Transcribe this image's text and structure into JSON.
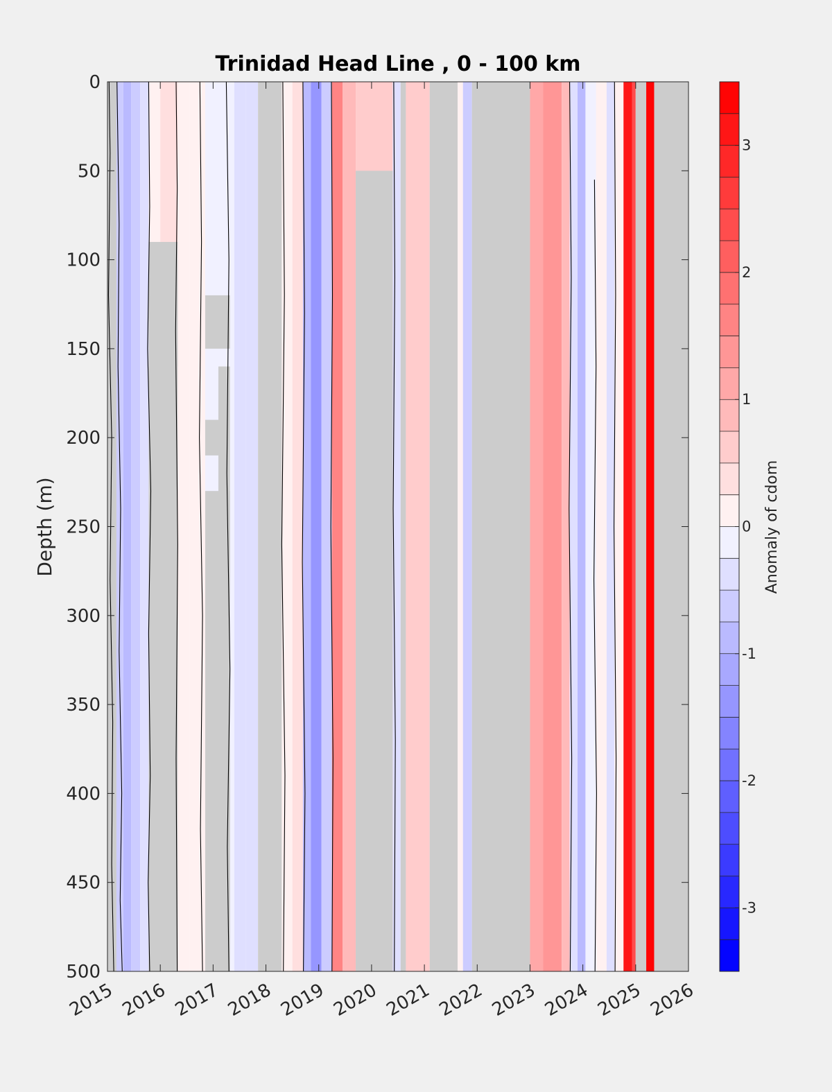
{
  "chart_data": {
    "type": "heatmap",
    "title": "Trinidad Head Line , 0 - 100 km",
    "xlabel": "",
    "ylabel": "Depth (m)",
    "colorbar_label": "Anomaly of cdom",
    "xlim": [
      2015,
      2026
    ],
    "ylim": [
      0,
      500
    ],
    "y_reversed": true,
    "x_ticks": [
      "2015",
      "2016",
      "2017",
      "2018",
      "2019",
      "2020",
      "2021",
      "2022",
      "2023",
      "2024",
      "2025",
      "2026"
    ],
    "y_ticks": [
      "0",
      "50",
      "100",
      "150",
      "200",
      "250",
      "300",
      "350",
      "400",
      "450",
      "500"
    ],
    "colorbar_range": [
      -3.5,
      3.5
    ],
    "colorbar_ticks": [
      "-3",
      "-2",
      "-1",
      "0",
      "1",
      "2",
      "3"
    ],
    "colorbar_levels": 28,
    "colors": {
      "negative": "#0000ff",
      "positive": "#ff0000",
      "zero": "#ffffff",
      "missing": "#cccccc",
      "background": "#f0f0f0"
    },
    "bands": [
      {
        "x0": 2015.0,
        "x1": 2015.17,
        "v": null
      },
      {
        "x0": 2015.17,
        "x1": 2015.3,
        "v": -0.55
      },
      {
        "x0": 2015.3,
        "x1": 2015.45,
        "v": -0.9
      },
      {
        "x0": 2015.45,
        "x1": 2015.62,
        "v": -0.75
      },
      {
        "x0": 2015.62,
        "x1": 2015.78,
        "v": -0.5
      },
      {
        "x0": 2015.78,
        "x1": 2016.0,
        "v": 0.15
      },
      {
        "x0": 2016.0,
        "x1": 2016.33,
        "v": 0.4
      },
      {
        "x0": 2016.33,
        "x1": 2016.55,
        "v": 0.1
      },
      {
        "x0": 2016.55,
        "x1": 2016.85,
        "v": 0.0
      },
      {
        "x0": 2016.85,
        "x1": 2017.1,
        "v": -0.15
      },
      {
        "x0": 2017.1,
        "x1": 2017.4,
        "v": -0.2
      },
      {
        "x0": 2017.4,
        "x1": 2017.62,
        "v": -0.35
      },
      {
        "x0": 2017.62,
        "x1": 2017.85,
        "v": -0.5
      },
      {
        "x0": 2017.85,
        "x1": 2018.3,
        "v": null
      },
      {
        "x0": 2018.3,
        "x1": 2018.5,
        "v": 0.0
      },
      {
        "x0": 2018.5,
        "x1": 2018.7,
        "v": 0.3
      },
      {
        "x0": 2018.7,
        "x1": 2018.85,
        "v": -0.9
      },
      {
        "x0": 2018.85,
        "x1": 2019.05,
        "v": -1.3
      },
      {
        "x0": 2019.05,
        "x1": 2019.25,
        "v": -0.6
      },
      {
        "x0": 2019.25,
        "x1": 2019.45,
        "v": 1.7
      },
      {
        "x0": 2019.45,
        "x1": 2019.7,
        "v": 0.9
      },
      {
        "x0": 2019.7,
        "x1": 2020.4,
        "v": 0.6
      },
      {
        "x0": 2020.4,
        "x1": 2020.55,
        "v": -0.3
      },
      {
        "x0": 2020.55,
        "x1": 2020.65,
        "v": null
      },
      {
        "x0": 2020.65,
        "x1": 2020.9,
        "v": 0.5
      },
      {
        "x0": 2020.9,
        "x1": 2021.1,
        "v": 0.7
      },
      {
        "x0": 2021.1,
        "x1": 2021.63,
        "v": null
      },
      {
        "x0": 2021.63,
        "x1": 2021.73,
        "v": 0.15
      },
      {
        "x0": 2021.73,
        "x1": 2021.9,
        "v": -0.6
      },
      {
        "x0": 2021.9,
        "x1": 2023.0,
        "v": null
      },
      {
        "x0": 2023.0,
        "x1": 2023.25,
        "v": 1.1
      },
      {
        "x0": 2023.25,
        "x1": 2023.6,
        "v": 1.4
      },
      {
        "x0": 2023.6,
        "x1": 2023.75,
        "v": 0.8
      },
      {
        "x0": 2023.75,
        "x1": 2023.9,
        "v": -0.3
      },
      {
        "x0": 2023.9,
        "x1": 2024.05,
        "v": -0.8
      },
      {
        "x0": 2024.05,
        "x1": 2024.25,
        "v": -0.25
      },
      {
        "x0": 2024.25,
        "x1": 2024.45,
        "v": 0.1
      },
      {
        "x0": 2024.45,
        "x1": 2024.6,
        "v": -0.35
      },
      {
        "x0": 2024.6,
        "x1": 2024.77,
        "v": 0.0
      },
      {
        "x0": 2024.77,
        "x1": 2024.93,
        "v": 3.2
      },
      {
        "x0": 2024.93,
        "x1": 2025.0,
        "v": 2.4
      },
      {
        "x0": 2025.0,
        "x1": 2025.2,
        "v": null
      },
      {
        "x0": 2025.2,
        "x1": 2025.35,
        "v": 3.4
      },
      {
        "x0": 2025.35,
        "x1": 2026.0,
        "v": null
      }
    ],
    "missing_patches": [
      {
        "x0": 2015.78,
        "x1": 2016.33,
        "y0": 90,
        "y1": 500
      },
      {
        "x0": 2016.2,
        "x1": 2016.33,
        "y0": 100,
        "y1": 160
      },
      {
        "x0": 2016.85,
        "x1": 2017.32,
        "y0": 230,
        "y1": 500
      },
      {
        "x0": 2017.1,
        "x1": 2017.32,
        "y0": 160,
        "y1": 500
      },
      {
        "x0": 2016.85,
        "x1": 2017.32,
        "y0": 120,
        "y1": 150
      },
      {
        "x0": 2016.85,
        "x1": 2017.15,
        "y0": 190,
        "y1": 210
      },
      {
        "x0": 2019.7,
        "x1": 2020.4,
        "y0": 50,
        "y1": 500
      }
    ],
    "contour_lines": [
      {
        "x": [
          2015.03,
          2015.05,
          2015.02,
          2015.08,
          2015.05,
          2015.1,
          2015.08,
          2015.12
        ],
        "y": [
          0,
          40,
          120,
          200,
          280,
          360,
          440,
          500
        ]
      },
      {
        "x": [
          2015.18,
          2015.22,
          2015.2,
          2015.25,
          2015.22,
          2015.27,
          2015.24,
          2015.28
        ],
        "y": [
          0,
          80,
          160,
          240,
          320,
          400,
          460,
          500
        ]
      },
      {
        "x": [
          2015.78,
          2015.8,
          2015.76,
          2015.82,
          2015.78,
          2015.81,
          2015.77,
          2015.8
        ],
        "y": [
          0,
          70,
          150,
          230,
          310,
          390,
          450,
          500
        ]
      },
      {
        "x": [
          2016.3,
          2016.32,
          2016.29,
          2016.33,
          2016.3,
          2016.32
        ],
        "y": [
          0,
          60,
          140,
          260,
          380,
          500
        ]
      },
      {
        "x": [
          2016.75,
          2016.78,
          2016.74,
          2016.8,
          2016.76,
          2016.8
        ],
        "y": [
          0,
          90,
          200,
          300,
          420,
          500
        ]
      },
      {
        "x": [
          2017.25,
          2017.3,
          2017.26,
          2017.32,
          2017.27,
          2017.3
        ],
        "y": [
          0,
          100,
          220,
          330,
          430,
          500
        ]
      },
      {
        "x": [
          2018.32,
          2018.35,
          2018.3,
          2018.36,
          2018.33
        ],
        "y": [
          0,
          120,
          260,
          390,
          500
        ]
      },
      {
        "x": [
          2018.7,
          2018.73,
          2018.69,
          2018.74,
          2018.71
        ],
        "y": [
          0,
          130,
          270,
          400,
          500
        ]
      },
      {
        "x": [
          2019.24,
          2019.26,
          2019.23,
          2019.27,
          2019.25
        ],
        "y": [
          0,
          120,
          250,
          380,
          500
        ]
      },
      {
        "x": [
          2020.42,
          2020.44,
          2020.41,
          2020.45,
          2020.43
        ],
        "y": [
          0,
          110,
          240,
          370,
          500
        ]
      },
      {
        "x": [
          2023.75,
          2023.78,
          2023.74,
          2023.79,
          2023.76
        ],
        "y": [
          0,
          110,
          240,
          380,
          500
        ]
      },
      {
        "x": [
          2024.22,
          2024.25,
          2024.21,
          2024.26,
          2024.23
        ],
        "y": [
          55,
          160,
          280,
          400,
          500
        ]
      },
      {
        "x": [
          2024.6,
          2024.62,
          2024.59,
          2024.63,
          2024.61
        ],
        "y": [
          0,
          120,
          250,
          380,
          500
        ]
      }
    ]
  }
}
